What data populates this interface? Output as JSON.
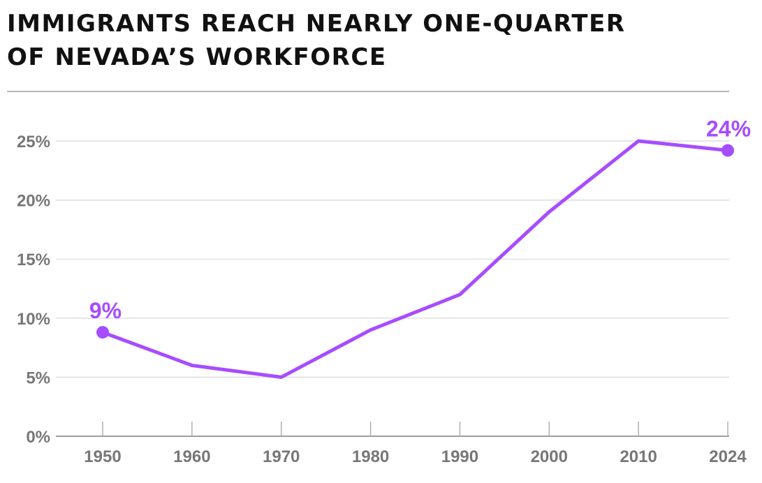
{
  "title_line1": "IMMIGRANTS REACH NEARLY ONE-QUARTER",
  "title_line2": "OF NEVADA’S WORKFORCE",
  "chart_data": {
    "type": "line",
    "title": "IMMIGRANTS REACH NEARLY ONE-QUARTER OF NEVADA’S WORKFORCE",
    "x": [
      "1950",
      "1960",
      "1970",
      "1980",
      "1990",
      "2000",
      "2010",
      "2024"
    ],
    "series": [
      {
        "values": [
          8.8,
          6,
          5,
          9,
          12,
          19,
          25,
          24.2
        ]
      }
    ],
    "ylim": [
      0,
      25
    ],
    "yticks": [
      0,
      5,
      10,
      15,
      20,
      25
    ],
    "ytick_labels": [
      "0%",
      "5%",
      "10%",
      "15%",
      "20%",
      "25%"
    ],
    "grid": true,
    "line_color": "#a64dff",
    "annotations": [
      {
        "index": 0,
        "label": "9%"
      },
      {
        "index": 7,
        "label": "24%"
      }
    ]
  }
}
